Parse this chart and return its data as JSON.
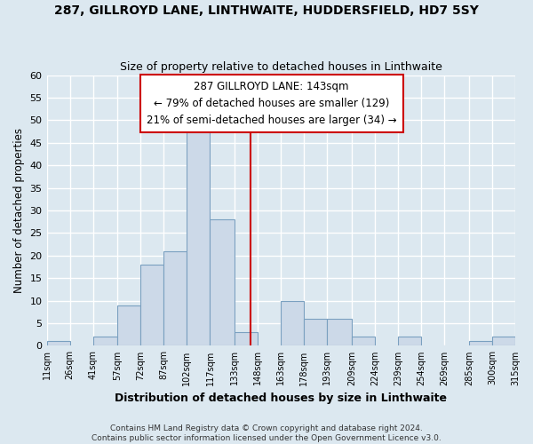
{
  "title": "287, GILLROYD LANE, LINTHWAITE, HUDDERSFIELD, HD7 5SY",
  "subtitle": "Size of property relative to detached houses in Linthwaite",
  "xlabel": "Distribution of detached houses by size in Linthwaite",
  "ylabel": "Number of detached properties",
  "bin_edges": [
    11,
    26,
    41,
    57,
    72,
    87,
    102,
    117,
    133,
    148,
    163,
    178,
    193,
    209,
    224,
    239,
    254,
    269,
    285,
    300,
    315
  ],
  "bin_labels": [
    "11sqm",
    "26sqm",
    "41sqm",
    "57sqm",
    "72sqm",
    "87sqm",
    "102sqm",
    "117sqm",
    "133sqm",
    "148sqm",
    "163sqm",
    "178sqm",
    "193sqm",
    "209sqm",
    "224sqm",
    "239sqm",
    "254sqm",
    "269sqm",
    "285sqm",
    "300sqm",
    "315sqm"
  ],
  "bar_heights": [
    1,
    0,
    2,
    9,
    18,
    21,
    48,
    28,
    3,
    0,
    10,
    6,
    6,
    2,
    0,
    2,
    0,
    0,
    1,
    2
  ],
  "bar_color": "#ccd9e8",
  "bar_edgecolor": "#7aa0c0",
  "vline_x": 143,
  "vline_color": "#cc0000",
  "ylim": [
    0,
    60
  ],
  "yticks": [
    0,
    5,
    10,
    15,
    20,
    25,
    30,
    35,
    40,
    45,
    50,
    55,
    60
  ],
  "annotation_title": "287 GILLROYD LANE: 143sqm",
  "annotation_line1": "← 79% of detached houses are smaller (129)",
  "annotation_line2": "21% of semi-detached houses are larger (34) →",
  "annotation_box_color": "#ffffff",
  "annotation_box_edgecolor": "#cc0000",
  "footer_line1": "Contains HM Land Registry data © Crown copyright and database right 2024.",
  "footer_line2": "Contains public sector information licensed under the Open Government Licence v3.0.",
  "bg_color": "#dce8f0",
  "grid_color": "#ffffff",
  "title_fontsize": 10,
  "subtitle_fontsize": 9
}
